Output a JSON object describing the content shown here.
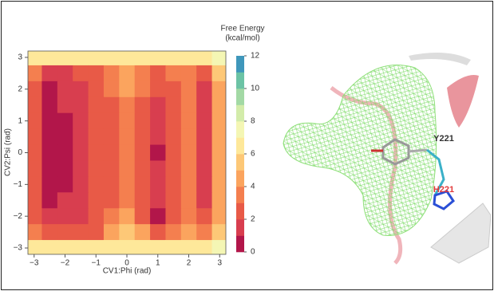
{
  "chart_data": {
    "type": "heatmap",
    "colorbar_label": [
      "Free Energy",
      "(kcal/mol)"
    ],
    "x_label": "CV1:Phi (rad)",
    "y_label": "CV2:Psi (rad)",
    "x": [
      -3,
      -2.5,
      -2,
      -1.5,
      -1,
      -0.5,
      0,
      0.5,
      1,
      1.5,
      2,
      2.5,
      3
    ],
    "y": [
      3,
      2.5,
      2,
      1.5,
      1,
      0.5,
      0,
      -0.5,
      -1,
      -1.5,
      -2,
      -2.5,
      -3
    ],
    "values": [
      [
        6,
        6,
        6,
        6,
        6,
        6,
        6,
        6,
        6,
        6,
        6,
        6,
        7
      ],
      [
        3,
        1.5,
        1.5,
        2,
        2.5,
        3,
        4.5,
        3.5,
        2.5,
        3,
        3.5,
        2.5,
        5
      ],
      [
        2,
        0.8,
        1.2,
        1.5,
        2.5,
        3,
        4.5,
        3,
        2,
        2.5,
        3.5,
        1.5,
        4
      ],
      [
        2,
        0.5,
        1,
        1.5,
        2,
        2.5,
        3.5,
        2.5,
        1.5,
        2.5,
        3.5,
        1.5,
        4
      ],
      [
        2,
        0.5,
        0.8,
        1.5,
        2,
        2.5,
        3,
        2,
        1.5,
        2.5,
        3.5,
        1.5,
        4
      ],
      [
        2,
        0.4,
        0.8,
        1.5,
        2,
        2.5,
        3,
        2,
        1.2,
        2.5,
        3,
        1.5,
        4
      ],
      [
        2,
        0.4,
        0.8,
        1.5,
        2,
        2.5,
        3,
        2,
        0.8,
        2.5,
        3,
        1.5,
        4
      ],
      [
        2,
        0.4,
        0.8,
        1.5,
        2,
        2.5,
        3,
        2,
        1.5,
        2.5,
        3,
        1.5,
        4
      ],
      [
        2,
        0.5,
        0.8,
        1.5,
        2,
        2.5,
        3,
        2,
        1.5,
        2.5,
        3,
        1.5,
        4
      ],
      [
        2,
        0.8,
        1.2,
        1.5,
        2,
        2.5,
        3.5,
        2,
        1.2,
        2.5,
        3,
        1.5,
        4
      ],
      [
        2.5,
        1.5,
        1.5,
        1.5,
        2,
        3,
        4,
        2.5,
        0.8,
        2.5,
        3.5,
        2,
        4
      ],
      [
        3,
        2,
        2,
        2,
        2.5,
        4,
        5,
        4,
        2.5,
        3,
        4,
        3,
        5
      ],
      [
        6,
        6,
        6,
        6,
        6,
        6,
        6,
        6,
        6,
        6,
        6,
        6,
        7
      ]
    ],
    "xlim": [
      -3.2,
      3.2
    ],
    "ylim": [
      -3.2,
      3.2
    ],
    "xticks": [
      {
        "value": -3,
        "label": "−3"
      },
      {
        "value": -2,
        "label": "−2"
      },
      {
        "value": -1,
        "label": "−1"
      },
      0,
      1,
      2,
      3
    ],
    "yticks": [
      {
        "value": -3,
        "label": "−3"
      },
      {
        "value": -2,
        "label": "−2"
      },
      {
        "value": -1,
        "label": "−1"
      },
      0,
      1,
      2,
      3
    ],
    "zlim": [
      0,
      12
    ],
    "zticks": [
      0,
      2,
      4,
      6,
      8,
      10,
      12
    ],
    "colors": [
      "#b2164a",
      "#d83e4f",
      "#e85a47",
      "#f47f4f",
      "#fba45e",
      "#fdc877",
      "#fee89a",
      "#f4f6b4",
      "#d3ecaa",
      "#a3d9a5",
      "#6cc3a5",
      "#3f97bb"
    ]
  },
  "image": {
    "labels": [
      "Y221",
      "H221"
    ]
  }
}
